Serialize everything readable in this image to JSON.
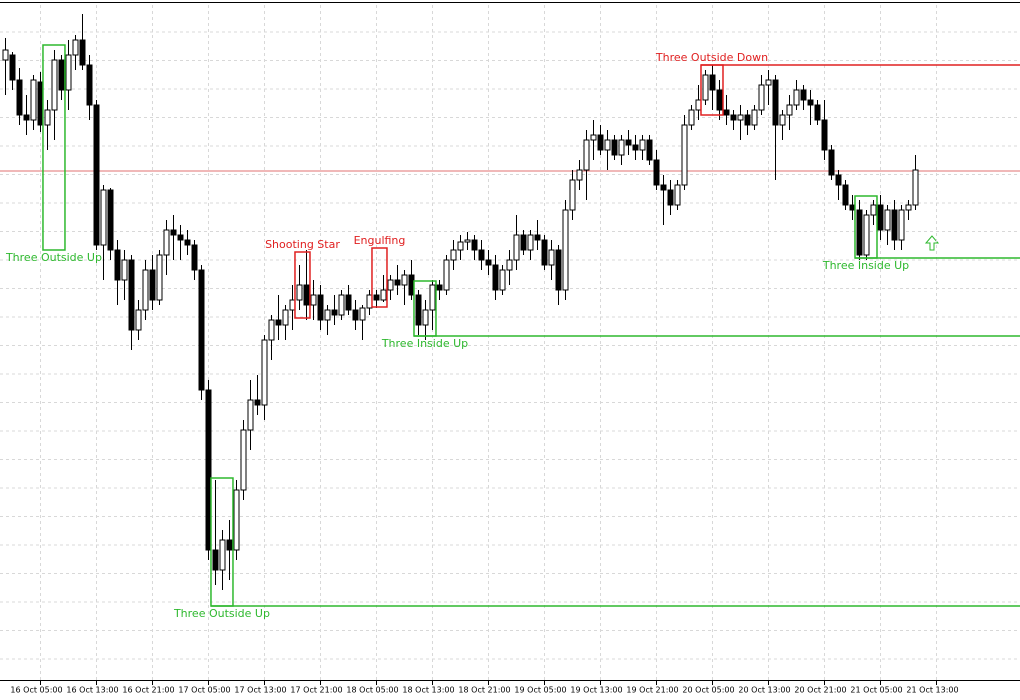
{
  "chart_data": {
    "type": "candlestick",
    "xlim": [
      -0.71,
      145
    ],
    "ylim": [
      0,
      675
    ],
    "xticks": [
      {
        "value": 5,
        "label": "16 Oct 05:00"
      },
      {
        "value": 13,
        "label": "16 Oct 13:00"
      },
      {
        "value": 21,
        "label": "16 Oct 21:00"
      },
      {
        "value": 29,
        "label": "17 Oct 05:00"
      },
      {
        "value": 37,
        "label": "17 Oct 13:00"
      },
      {
        "value": 45,
        "label": "17 Oct 21:00"
      },
      {
        "value": 53,
        "label": "18 Oct 05:00"
      },
      {
        "value": 61,
        "label": "18 Oct 13:00"
      },
      {
        "value": 69,
        "label": "18 Oct 21:00"
      },
      {
        "value": 77,
        "label": "19 Oct 05:00"
      },
      {
        "value": 85,
        "label": "19 Oct 13:00"
      },
      {
        "value": 93,
        "label": "19 Oct 21:00"
      },
      {
        "value": 101,
        "label": "20 Oct 05:00"
      },
      {
        "value": 109,
        "label": "20 Oct 13:00"
      },
      {
        "value": 117,
        "label": "20 Oct 21:00"
      },
      {
        "value": 125,
        "label": "21 Oct 05:00"
      },
      {
        "value": 133,
        "label": "21 Oct 13:00"
      }
    ],
    "ohlc": [
      [
        620,
        642,
        585,
        630
      ],
      [
        625,
        628,
        590,
        600
      ],
      [
        600,
        612,
        555,
        565
      ],
      [
        565,
        585,
        545,
        560
      ],
      [
        560,
        605,
        550,
        600
      ],
      [
        598,
        608,
        548,
        555
      ],
      [
        555,
        580,
        530,
        570
      ],
      [
        570,
        630,
        540,
        620
      ],
      [
        620,
        625,
        580,
        590
      ],
      [
        590,
        640,
        570,
        625
      ],
      [
        625,
        645,
        610,
        640
      ],
      [
        640,
        666,
        610,
        615
      ],
      [
        615,
        625,
        560,
        575
      ],
      [
        575,
        580,
        430,
        435
      ],
      [
        435,
        495,
        400,
        490
      ],
      [
        490,
        492,
        420,
        430
      ],
      [
        430,
        440,
        375,
        400
      ],
      [
        400,
        430,
        380,
        420
      ],
      [
        420,
        425,
        330,
        350
      ],
      [
        350,
        380,
        340,
        370
      ],
      [
        370,
        420,
        360,
        410
      ],
      [
        410,
        425,
        370,
        380
      ],
      [
        380,
        430,
        375,
        425
      ],
      [
        425,
        460,
        405,
        450
      ],
      [
        450,
        465,
        420,
        445
      ],
      [
        445,
        455,
        420,
        440
      ],
      [
        440,
        450,
        425,
        435
      ],
      [
        435,
        440,
        400,
        410
      ],
      [
        410,
        415,
        280,
        290
      ],
      [
        290,
        300,
        120,
        130
      ],
      [
        130,
        200,
        95,
        110
      ],
      [
        110,
        150,
        90,
        140
      ],
      [
        140,
        160,
        100,
        130
      ],
      [
        130,
        200,
        120,
        190
      ],
      [
        190,
        260,
        180,
        250
      ],
      [
        250,
        300,
        230,
        280
      ],
      [
        280,
        305,
        265,
        275
      ],
      [
        275,
        345,
        260,
        340
      ],
      [
        340,
        365,
        320,
        360
      ],
      [
        360,
        385,
        340,
        355
      ],
      [
        355,
        375,
        340,
        370
      ],
      [
        370,
        395,
        350,
        380
      ],
      [
        380,
        415,
        370,
        395
      ],
      [
        395,
        430,
        360,
        375
      ],
      [
        375,
        400,
        360,
        385
      ],
      [
        385,
        395,
        350,
        360
      ],
      [
        360,
        375,
        345,
        370
      ],
      [
        370,
        385,
        355,
        365
      ],
      [
        365,
        390,
        360,
        385
      ],
      [
        385,
        395,
        365,
        370
      ],
      [
        370,
        380,
        350,
        360
      ],
      [
        360,
        375,
        340,
        372
      ],
      [
        372,
        390,
        365,
        385
      ],
      [
        385,
        390,
        372,
        380
      ],
      [
        380,
        405,
        378,
        390
      ],
      [
        390,
        405,
        380,
        400
      ],
      [
        400,
        415,
        385,
        395
      ],
      [
        395,
        410,
        375,
        405
      ],
      [
        405,
        420,
        380,
        385
      ],
      [
        385,
        390,
        345,
        355
      ],
      [
        355,
        380,
        340,
        370
      ],
      [
        370,
        400,
        350,
        395
      ],
      [
        395,
        400,
        380,
        390
      ],
      [
        390,
        425,
        385,
        420
      ],
      [
        420,
        440,
        410,
        430
      ],
      [
        430,
        445,
        420,
        438
      ],
      [
        438,
        448,
        430,
        440
      ],
      [
        440,
        445,
        420,
        430
      ],
      [
        430,
        440,
        410,
        420
      ],
      [
        420,
        430,
        405,
        415
      ],
      [
        415,
        425,
        380,
        390
      ],
      [
        390,
        415,
        385,
        410
      ],
      [
        410,
        430,
        395,
        420
      ],
      [
        420,
        465,
        410,
        445
      ],
      [
        445,
        450,
        425,
        430
      ],
      [
        430,
        450,
        420,
        445
      ],
      [
        445,
        460,
        430,
        440
      ],
      [
        440,
        445,
        410,
        415
      ],
      [
        415,
        440,
        400,
        430
      ],
      [
        430,
        435,
        375,
        390
      ],
      [
        390,
        480,
        380,
        470
      ],
      [
        470,
        510,
        460,
        500
      ],
      [
        500,
        520,
        490,
        510
      ],
      [
        510,
        550,
        480,
        540
      ],
      [
        540,
        560,
        520,
        545
      ],
      [
        545,
        555,
        525,
        530
      ],
      [
        530,
        550,
        510,
        540
      ],
      [
        540,
        545,
        520,
        525
      ],
      [
        525,
        545,
        515,
        540
      ],
      [
        540,
        550,
        525,
        535
      ],
      [
        535,
        545,
        520,
        530
      ],
      [
        530,
        545,
        520,
        540
      ],
      [
        540,
        545,
        515,
        520
      ],
      [
        520,
        530,
        490,
        495
      ],
      [
        495,
        505,
        455,
        490
      ],
      [
        490,
        500,
        465,
        475
      ],
      [
        475,
        500,
        470,
        495
      ],
      [
        495,
        565,
        490,
        555
      ],
      [
        555,
        575,
        550,
        570
      ],
      [
        570,
        595,
        560,
        580
      ],
      [
        580,
        610,
        575,
        605
      ],
      [
        605,
        615,
        570,
        590
      ],
      [
        590,
        600,
        560,
        570
      ],
      [
        570,
        585,
        555,
        565
      ],
      [
        565,
        570,
        550,
        560
      ],
      [
        560,
        575,
        540,
        565
      ],
      [
        565,
        570,
        545,
        555
      ],
      [
        555,
        575,
        550,
        570
      ],
      [
        570,
        605,
        565,
        595
      ],
      [
        595,
        610,
        575,
        600
      ],
      [
        600,
        605,
        500,
        555
      ],
      [
        555,
        570,
        540,
        565
      ],
      [
        565,
        585,
        550,
        575
      ],
      [
        575,
        600,
        570,
        590
      ],
      [
        590,
        595,
        570,
        580
      ],
      [
        580,
        590,
        555,
        575
      ],
      [
        575,
        580,
        555,
        560
      ],
      [
        560,
        580,
        520,
        530
      ],
      [
        530,
        535,
        500,
        505
      ],
      [
        505,
        510,
        480,
        495
      ],
      [
        495,
        500,
        470,
        475
      ],
      [
        475,
        485,
        460,
        470
      ],
      [
        470,
        480,
        420,
        425
      ],
      [
        425,
        470,
        420,
        465
      ],
      [
        465,
        480,
        455,
        475
      ],
      [
        475,
        485,
        440,
        450
      ],
      [
        450,
        475,
        435,
        470
      ],
      [
        470,
        480,
        430,
        440
      ],
      [
        440,
        475,
        430,
        470
      ],
      [
        470,
        480,
        460,
        475
      ],
      [
        475,
        525,
        470,
        510
      ]
    ],
    "reference_line": {
      "value": 509,
      "color": "#e07070"
    },
    "patterns": [
      {
        "name": "Three Outside Up",
        "color": "#2eb82e",
        "start": 6,
        "end": 8,
        "high": 635,
        "low": 430,
        "label_position": "below"
      },
      {
        "name": "Three Outside Up",
        "color": "#2eb82e",
        "start": 30,
        "end": 32,
        "high": 202,
        "low": 74,
        "level": 74,
        "label_position": "below"
      },
      {
        "name": "Shooting Star",
        "color": "#e02020",
        "start": 42,
        "end": 43,
        "high": 428,
        "low": 362,
        "label_position": "above"
      },
      {
        "name": "Engulfing",
        "color": "#e02020",
        "start": 53,
        "end": 54,
        "high": 432,
        "low": 373,
        "label_position": "above"
      },
      {
        "name": "Three Inside Up",
        "color": "#2eb82e",
        "start": 59,
        "end": 61,
        "high": 399,
        "low": 344,
        "level": 344,
        "label_position": "below"
      },
      {
        "name": "Three Outside Down",
        "color": "#e02020",
        "start": 100,
        "end": 102,
        "high": 615,
        "low": 565,
        "level": 615,
        "label_position": "above"
      },
      {
        "name": "Three Inside Up",
        "color": "#2eb82e",
        "start": 122,
        "end": 124,
        "high": 484,
        "low": 422,
        "level": 422,
        "label_position": "below"
      }
    ]
  }
}
